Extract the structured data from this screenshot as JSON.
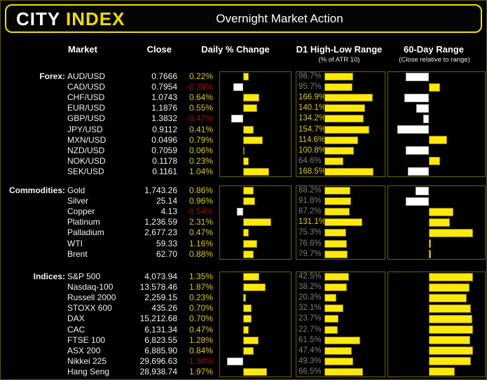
{
  "header": {
    "logo_city": "CITY ",
    "logo_index": "INDEX",
    "title": "Overnight Market Action"
  },
  "columns": {
    "market": "Market",
    "close": "Close",
    "daily": "Daily % Change",
    "d1_range": "D1 High-Low Range",
    "d1_range_sub": "(% of ATR 10)",
    "range60": "60-Day Range",
    "range60_sub": "(Close relative to range)"
  },
  "colors": {
    "bar_yellow": "#ffe90a",
    "text_yellow": "#d9c71f",
    "negative_red": "#96150e",
    "muted_gray": "#7c7c7c",
    "white": "#f2f2f2",
    "border_olive": "#6b6200",
    "header_border_yellow": "#f0e300"
  },
  "chart_data": {
    "type": "table",
    "title": "Overnight Market Action",
    "legend_notes": {
      "daily_bars": "yellow bar right = positive daily % change, white bar left = negative",
      "atr_bars": "bar length = day high-low range as % of 10-day ATR; label gray below 100%, yellow at/above 100%",
      "range60_bars": "close position within 60-day range; white left = below midpoint, yellow right = above midpoint"
    },
    "sections": [
      {
        "label": "Forex:",
        "daily_axis_max": 1.65,
        "atr_axis_max": 200,
        "rows": [
          {
            "market": "AUD/USD",
            "close": "0.7666",
            "daily_pct": 0.22,
            "atr_pct": 98.7,
            "range_pos": 0.24
          },
          {
            "market": "CAD/USD",
            "close": "0.7954",
            "daily_pct": -0.38,
            "atr_pct": 95.7,
            "range_pos": 0.63
          },
          {
            "market": "CHF/USD",
            "close": "1.0743",
            "daily_pct": 0.64,
            "atr_pct": 166.9,
            "range_pos": 0.22
          },
          {
            "market": "EUR/USD",
            "close": "1.1876",
            "daily_pct": 0.55,
            "atr_pct": 140.1,
            "range_pos": 0.36
          },
          {
            "market": "GBP/USD",
            "close": "1.3832",
            "daily_pct": -0.47,
            "atr_pct": 134.2,
            "range_pos": 0.44
          },
          {
            "market": "JPY/USD",
            "close": "0.9112",
            "daily_pct": 0.41,
            "atr_pct": 154.7,
            "range_pos": 0.14
          },
          {
            "market": "MXN/USD",
            "close": "0.0496",
            "daily_pct": 0.79,
            "atr_pct": 114.6,
            "range_pos": 0.71
          },
          {
            "market": "NZD/USD",
            "close": "0.7059",
            "daily_pct": 0.06,
            "atr_pct": 100.8,
            "range_pos": 0.24
          },
          {
            "market": "NOK/USD",
            "close": "0.1178",
            "daily_pct": 0.23,
            "atr_pct": 64.6,
            "range_pos": 0.63
          },
          {
            "market": "SEK/USD",
            "close": "0.1161",
            "daily_pct": 1.04,
            "atr_pct": 168.5,
            "range_pos": 0.26
          }
        ]
      },
      {
        "label": "Commodities:",
        "daily_axis_max": 3.4,
        "atr_axis_max": 200,
        "rows": [
          {
            "market": "Gold",
            "close": "1,743.26",
            "daily_pct": 0.86,
            "atr_pct": 88.2,
            "range_pos": 0.35
          },
          {
            "market": "Silver",
            "close": "25.14",
            "daily_pct": 0.96,
            "atr_pct": 91.8,
            "range_pos": 0.24
          },
          {
            "market": "Copper",
            "close": "4.13",
            "daily_pct": -0.54,
            "atr_pct": 87.2,
            "range_pos": 0.78
          },
          {
            "market": "Platinum",
            "close": "1,236.59",
            "daily_pct": 2.31,
            "atr_pct": 131.1,
            "range_pos": 0.74
          },
          {
            "market": "Palladium",
            "close": "2,677.23",
            "daily_pct": 0.47,
            "atr_pct": 75.3,
            "range_pos": 1.0
          },
          {
            "market": "WTI",
            "close": "59.33",
            "daily_pct": 1.16,
            "atr_pct": 76.6,
            "range_pos": 0.52
          },
          {
            "market": "Brent",
            "close": "62.70",
            "daily_pct": 0.88,
            "atr_pct": 79.7,
            "range_pos": 0.52
          }
        ]
      },
      {
        "label": "Indices:",
        "daily_axis_max": 3.4,
        "atr_axis_max": 100,
        "rows": [
          {
            "market": "S&P 500",
            "close": "4,073.94",
            "daily_pct": 1.35,
            "atr_pct": 42.5,
            "range_pos": 1.0
          },
          {
            "market": "Nasdaq-100",
            "close": "13,578.46",
            "daily_pct": 1.87,
            "atr_pct": 38.2,
            "range_pos": 0.96
          },
          {
            "market": "Russell 2000",
            "close": "2,259.15",
            "daily_pct": 0.23,
            "atr_pct": 20.3,
            "range_pos": 0.93
          },
          {
            "market": "STOXX 600",
            "close": "435.26",
            "daily_pct": 0.7,
            "atr_pct": 32.1,
            "range_pos": 0.98
          },
          {
            "market": "DAX",
            "close": "15,212.68",
            "daily_pct": 0.7,
            "atr_pct": 23.7,
            "range_pos": 0.99
          },
          {
            "market": "CAC",
            "close": "6,131.34",
            "daily_pct": 0.47,
            "atr_pct": 22.7,
            "range_pos": 1.0
          },
          {
            "market": "FTSE 100",
            "close": "6,823.55",
            "daily_pct": 1.28,
            "atr_pct": 61.5,
            "range_pos": 0.97
          },
          {
            "market": "ASX 200",
            "close": "6,885.90",
            "daily_pct": 0.84,
            "atr_pct": 47.4,
            "range_pos": 1.0
          },
          {
            "market": "Nikkei 225",
            "close": "29,696.63",
            "daily_pct": -1.3,
            "atr_pct": 49.3,
            "range_pos": 0.98
          },
          {
            "market": "Hang Seng",
            "close": "28,938.74",
            "daily_pct": 1.97,
            "atr_pct": 66.5,
            "range_pos": 0.79
          }
        ]
      }
    ]
  }
}
